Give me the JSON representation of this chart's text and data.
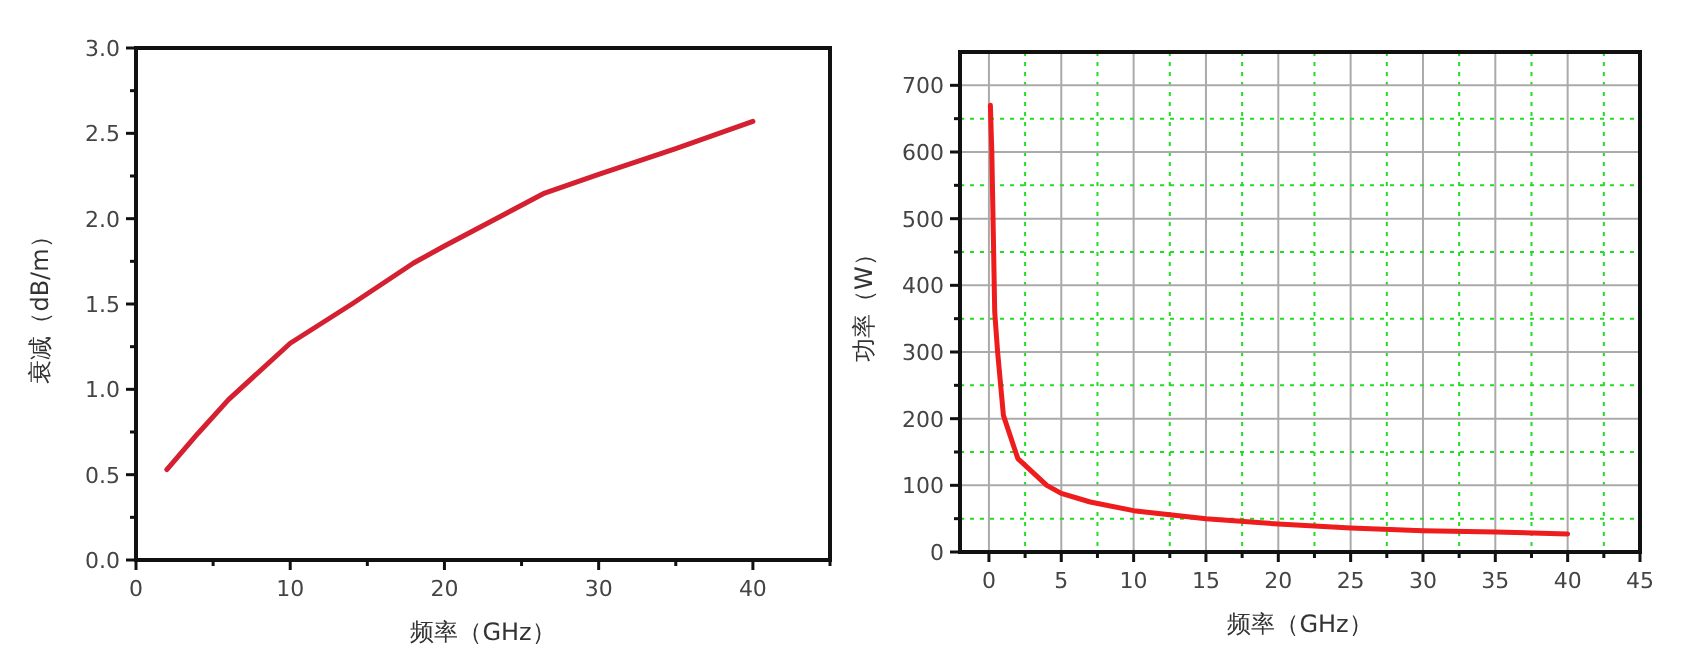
{
  "chart_data": [
    {
      "type": "line",
      "xlabel": "频率（GHz）",
      "ylabel": "衰减（dB/m）",
      "xlim": [
        0,
        45
      ],
      "ylim": [
        0,
        3
      ],
      "xticks": [
        0,
        {
          "value": 5,
          "label": null
        },
        10,
        {
          "value": 15,
          "label": null
        },
        20,
        {
          "value": 25,
          "label": null
        },
        30,
        {
          "value": 35,
          "label": null
        },
        40,
        {
          "value": 45,
          "label": null
        }
      ],
      "yticks": [
        {
          "value": 0,
          "label": "0.0"
        },
        {
          "value": 0.25,
          "label": null
        },
        {
          "value": 0.5,
          "label": "0.5"
        },
        {
          "value": 0.75,
          "label": null
        },
        {
          "value": 1,
          "label": "1.0"
        },
        {
          "value": 1.25,
          "label": null
        },
        {
          "value": 1.5,
          "label": "1.5"
        },
        {
          "value": 1.75,
          "label": null
        },
        {
          "value": 2,
          "label": "2.0"
        },
        {
          "value": 2.25,
          "label": null
        },
        {
          "value": 2.5,
          "label": "2.5"
        },
        {
          "value": 2.75,
          "label": null
        },
        {
          "value": 3,
          "label": "3.0"
        }
      ],
      "grid": false,
      "series": [
        {
          "color": "#d42030",
          "x": [
            2,
            4,
            6,
            10,
            14,
            18,
            20,
            26.5,
            30,
            35,
            40
          ],
          "values": [
            0.53,
            0.74,
            0.94,
            1.27,
            1.5,
            1.74,
            1.84,
            2.15,
            2.26,
            2.41,
            2.57
          ]
        }
      ]
    },
    {
      "type": "line",
      "xlabel": "频率（GHz）",
      "ylabel": "功率（W）",
      "xlim": [
        -2,
        45
      ],
      "ylim": [
        0,
        750
      ],
      "xticks": [
        0,
        {
          "value": 2.5,
          "label": null
        },
        5,
        {
          "value": 7.5,
          "label": null
        },
        10,
        {
          "value": 12.5,
          "label": null
        },
        15,
        {
          "value": 17.5,
          "label": null
        },
        20,
        {
          "value": 22.5,
          "label": null
        },
        25,
        {
          "value": 27.5,
          "label": null
        },
        30,
        {
          "value": 32.5,
          "label": null
        },
        35,
        {
          "value": 37.5,
          "label": null
        },
        40,
        {
          "value": 42.5,
          "label": null
        },
        45
      ],
      "yticks": [
        0,
        {
          "value": 50,
          "label": null
        },
        100,
        {
          "value": 150,
          "label": null
        },
        200,
        {
          "value": 250,
          "label": null
        },
        300,
        {
          "value": 350,
          "label": null
        },
        400,
        {
          "value": 450,
          "label": null
        },
        500,
        {
          "value": 550,
          "label": null
        },
        600,
        {
          "value": 650,
          "label": null
        },
        700
      ],
      "grid": true,
      "series": [
        {
          "color": "#ee1c1c",
          "x": [
            0.1,
            0.2,
            0.3,
            0.4,
            0.6,
            1,
            2,
            4,
            5,
            7,
            10,
            15,
            20,
            25,
            30,
            35,
            40
          ],
          "values": [
            670,
            600,
            480,
            360,
            300,
            205,
            140,
            100,
            88,
            75,
            62,
            50,
            42,
            36,
            32,
            30,
            27
          ]
        }
      ]
    }
  ]
}
